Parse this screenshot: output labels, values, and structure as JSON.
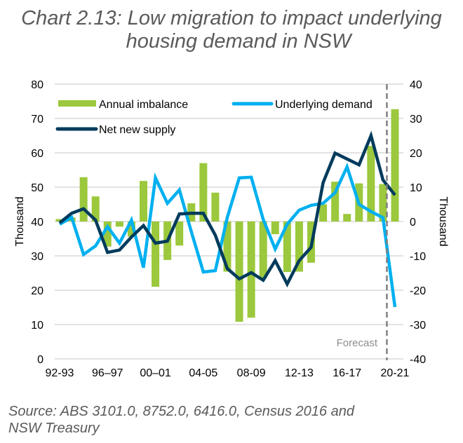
{
  "title_line1": "Chart 2.13:  Low migration to impact underlying",
  "title_line2": "housing demand in NSW",
  "source_line1": "Source: ABS 3101.0, 8752.0, 6416.0, Census 2016 and",
  "source_line2": "NSW Treasury",
  "colors": {
    "bars": "#9bc83c",
    "underlying": "#00b0f0",
    "supply": "#003b5c",
    "grid": "#d9d9d9",
    "forecast_line": "#7f7f7f"
  },
  "chart_data": {
    "type": "bar+line",
    "ylabel_left": "Thousand",
    "ylabel_right": "Thousand",
    "ylim_left": [
      0,
      80
    ],
    "ylim_right": [
      -40,
      40
    ],
    "yticks_left": [
      "0",
      "10",
      "20",
      "30",
      "40",
      "50",
      "60",
      "70",
      "80"
    ],
    "yticks_right": [
      "-40",
      "-30",
      "-20",
      "-10",
      "0",
      "10",
      "20",
      "30",
      "40"
    ],
    "grid": true,
    "legend_placement": "top",
    "xtick_labels": [
      "92-93",
      "96–97",
      "00–01",
      "04-05",
      "08-09",
      "12-13",
      "16-17",
      "20-21"
    ],
    "categories": [
      "92-93",
      "93-94",
      "94-95",
      "95-96",
      "96-97",
      "97-98",
      "98-99",
      "99-00",
      "00-01",
      "01-02",
      "02-03",
      "03-04",
      "04-05",
      "05-06",
      "06-07",
      "07-08",
      "08-09",
      "09-10",
      "10-11",
      "11-12",
      "12-13",
      "13-14",
      "14-15",
      "15-16",
      "16-17",
      "17-18",
      "18-19",
      "19-20",
      "20-21"
    ],
    "annotation": "Forecast",
    "forecast_starts_after": "19-20",
    "series": [
      {
        "name": "Annual imbalance",
        "type": "bar",
        "axis": "right",
        "values": [
          0.7,
          1.2,
          12.9,
          7.3,
          -7.3,
          -1.5,
          -4.4,
          11.8,
          -19,
          -11.2,
          -7,
          5.3,
          17,
          8.4,
          -14.6,
          -29.2,
          -28,
          -16.5,
          -3.7,
          -14.7,
          -14.6,
          -12,
          5,
          11.6,
          2.2,
          11.1,
          22,
          10.9,
          32.7
        ]
      },
      {
        "name": "Underlying demand",
        "type": "line",
        "axis": "left",
        "values": [
          39.2,
          41.2,
          30.4,
          32.9,
          38.5,
          33.7,
          40.4,
          26.6,
          52.7,
          45.3,
          49.2,
          37,
          25.3,
          25.7,
          41.2,
          52.7,
          52.9,
          40.6,
          32,
          39.2,
          43.3,
          44.7,
          45.3,
          48.4,
          55.9,
          45,
          42.9,
          41.1,
          15.1
        ]
      },
      {
        "name": "Net new supply",
        "type": "line",
        "axis": "left",
        "values": [
          39.6,
          42.4,
          43.7,
          40.4,
          31,
          31.7,
          35.5,
          38.8,
          33.7,
          34.3,
          42.2,
          42.4,
          42.4,
          36,
          26.3,
          23.3,
          25.1,
          22.9,
          28.6,
          21.8,
          28.6,
          32.5,
          51.3,
          59.9,
          58.2,
          56.5,
          65,
          52.1,
          47.7
        ]
      }
    ]
  }
}
